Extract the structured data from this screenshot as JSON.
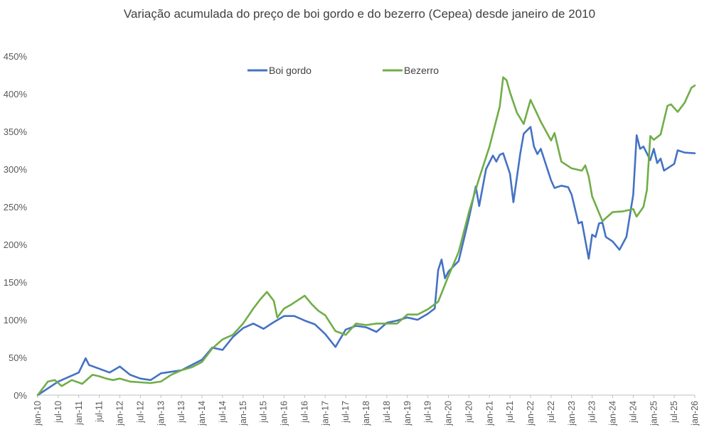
{
  "chart_data": {
    "type": "line",
    "title": "Variação acumulada do preço de boi gordo  e do bezerro (Cepea) desde janeiro de 2010",
    "xlabel": "",
    "ylabel": "",
    "ylim": [
      0,
      450
    ],
    "yticks": [
      "0%",
      "50%",
      "100%",
      "150%",
      "200%",
      "250%",
      "300%",
      "350%",
      "400%",
      "450%"
    ],
    "y_tick_values": [
      0,
      50,
      100,
      150,
      200,
      250,
      300,
      350,
      400,
      450
    ],
    "x_tick_labels": [
      "jan-10",
      "jul-10",
      "jan-11",
      "jul-11",
      "jan-12",
      "jul-12",
      "jan-13",
      "jul-13",
      "jan-14",
      "jul-14",
      "jan-15",
      "jul-15",
      "jan-16",
      "jul-16",
      "jan-17",
      "jul-17",
      "jan-18",
      "jul-18",
      "jan-19",
      "jul-19",
      "jan-20",
      "jul-20",
      "jan-21",
      "jul-21",
      "jan-22",
      "jul-22",
      "jan-23",
      "jul-23",
      "jan-24",
      "jul-24",
      "jan-25",
      "jul-25",
      "jan-26"
    ],
    "x_start": "jan-10",
    "x_end": "jan-26",
    "grid": false,
    "legend_position": "top",
    "series": [
      {
        "name": "Boi gordo",
        "color": "#4472C4",
        "points": [
          [
            "jan-10",
            0
          ],
          [
            "jul-10",
            18
          ],
          [
            "jan-11",
            30
          ],
          [
            "mar-11",
            49
          ],
          [
            "apr-11",
            40
          ],
          [
            "oct-11",
            30
          ],
          [
            "jan-12",
            38
          ],
          [
            "apr-12",
            27
          ],
          [
            "jul-12",
            22
          ],
          [
            "oct-12",
            20
          ],
          [
            "jan-13",
            29
          ],
          [
            "jul-13",
            33
          ],
          [
            "jan-14",
            47
          ],
          [
            "apr-14",
            63
          ],
          [
            "jul-14",
            60
          ],
          [
            "oct-14",
            77
          ],
          [
            "jan-15",
            89
          ],
          [
            "apr-15",
            95
          ],
          [
            "jul-15",
            88
          ],
          [
            "oct-15",
            97
          ],
          [
            "jan-16",
            105
          ],
          [
            "apr-16",
            105
          ],
          [
            "jul-16",
            99
          ],
          [
            "oct-16",
            94
          ],
          [
            "jan-17",
            81
          ],
          [
            "apr-17",
            64
          ],
          [
            "jul-17",
            87
          ],
          [
            "oct-17",
            92
          ],
          [
            "jan-18",
            90
          ],
          [
            "apr-18",
            84
          ],
          [
            "jul-18",
            96
          ],
          [
            "oct-18",
            99
          ],
          [
            "jan-19",
            103
          ],
          [
            "apr-19",
            100
          ],
          [
            "jul-19",
            108
          ],
          [
            "sep-19",
            115
          ],
          [
            "oct-19",
            166
          ],
          [
            "nov-19",
            180
          ],
          [
            "dec-19",
            155
          ],
          [
            "jan-20",
            164
          ],
          [
            "apr-20",
            178
          ],
          [
            "jul-20",
            235
          ],
          [
            "sep-20",
            277
          ],
          [
            "oct-20",
            251
          ],
          [
            "dec-20",
            300
          ],
          [
            "feb-21",
            318
          ],
          [
            "mar-21",
            310
          ],
          [
            "apr-21",
            319
          ],
          [
            "may-21",
            321
          ],
          [
            "jul-21",
            294
          ],
          [
            "aug-21",
            256
          ],
          [
            "oct-21",
            321
          ],
          [
            "nov-21",
            347
          ],
          [
            "jan-22",
            356
          ],
          [
            "feb-22",
            330
          ],
          [
            "mar-22",
            320
          ],
          [
            "apr-22",
            327
          ],
          [
            "jul-22",
            285
          ],
          [
            "aug-22",
            275
          ],
          [
            "oct-22",
            278
          ],
          [
            "dec-22",
            276
          ],
          [
            "jan-23",
            266
          ],
          [
            "mar-23",
            228
          ],
          [
            "apr-23",
            230
          ],
          [
            "jun-23",
            181
          ],
          [
            "jul-23",
            213
          ],
          [
            "aug-23",
            210
          ],
          [
            "sep-23",
            228
          ],
          [
            "oct-23",
            229
          ],
          [
            "nov-23",
            210
          ],
          [
            "jan-24",
            204
          ],
          [
            "mar-24",
            193
          ],
          [
            "may-24",
            210
          ],
          [
            "jul-24",
            266
          ],
          [
            "aug-24",
            345
          ],
          [
            "sep-24",
            327
          ],
          [
            "oct-24",
            330
          ],
          [
            "dec-24",
            312
          ],
          [
            "jan-25",
            327
          ],
          [
            "feb-25",
            308
          ],
          [
            "mar-25",
            314
          ],
          [
            "apr-25",
            298
          ],
          [
            "jul-25",
            307
          ],
          [
            "aug-25",
            325
          ],
          [
            "oct-25",
            322
          ],
          [
            "jan-26",
            321
          ]
        ]
      },
      {
        "name": "Bezerro",
        "color": "#70AD47",
        "points": [
          [
            "jan-10",
            0
          ],
          [
            "apr-10",
            18
          ],
          [
            "jun-10",
            20
          ],
          [
            "aug-10",
            12
          ],
          [
            "nov-10",
            20
          ],
          [
            "feb-11",
            15
          ],
          [
            "may-11",
            27
          ],
          [
            "jul-11",
            25
          ],
          [
            "sep-11",
            22
          ],
          [
            "nov-11",
            20
          ],
          [
            "jan-12",
            22
          ],
          [
            "apr-12",
            18
          ],
          [
            "jul-12",
            17
          ],
          [
            "oct-12",
            16
          ],
          [
            "jan-13",
            18
          ],
          [
            "apr-13",
            27
          ],
          [
            "jul-13",
            33
          ],
          [
            "oct-13",
            37
          ],
          [
            "jan-14",
            44
          ],
          [
            "apr-14",
            62
          ],
          [
            "jul-14",
            74
          ],
          [
            "oct-14",
            80
          ],
          [
            "jan-15",
            95
          ],
          [
            "apr-15",
            115
          ],
          [
            "jun-15",
            127
          ],
          [
            "aug-15",
            137
          ],
          [
            "oct-15",
            125
          ],
          [
            "nov-15",
            103
          ],
          [
            "jan-16",
            115
          ],
          [
            "mar-16",
            120
          ],
          [
            "jun-16",
            129
          ],
          [
            "jul-16",
            132
          ],
          [
            "sep-16",
            121
          ],
          [
            "nov-16",
            112
          ],
          [
            "jan-17",
            106
          ],
          [
            "apr-17",
            85
          ],
          [
            "jul-17",
            80
          ],
          [
            "oct-17",
            95
          ],
          [
            "jan-18",
            93
          ],
          [
            "apr-18",
            95
          ],
          [
            "jul-18",
            95
          ],
          [
            "oct-18",
            95
          ],
          [
            "jan-19",
            107
          ],
          [
            "apr-19",
            107
          ],
          [
            "jul-19",
            114
          ],
          [
            "oct-19",
            124
          ],
          [
            "jan-20",
            158
          ],
          [
            "apr-20",
            190
          ],
          [
            "jul-20",
            243
          ],
          [
            "oct-20",
            288
          ],
          [
            "jan-21",
            330
          ],
          [
            "apr-21",
            383
          ],
          [
            "may-21",
            422
          ],
          [
            "jun-21",
            418
          ],
          [
            "jul-21",
            402
          ],
          [
            "sep-21",
            375
          ],
          [
            "nov-21",
            360
          ],
          [
            "jan-22",
            392
          ],
          [
            "apr-22",
            363
          ],
          [
            "jul-22",
            338
          ],
          [
            "aug-22",
            348
          ],
          [
            "oct-22",
            310
          ],
          [
            "jan-23",
            301
          ],
          [
            "apr-23",
            298
          ],
          [
            "may-23",
            305
          ],
          [
            "jun-23",
            290
          ],
          [
            "jul-23",
            264
          ],
          [
            "oct-23",
            231
          ],
          [
            "jan-24",
            243
          ],
          [
            "apr-24",
            244
          ],
          [
            "jul-24",
            247
          ],
          [
            "aug-24",
            237
          ],
          [
            "oct-24",
            250
          ],
          [
            "nov-24",
            272
          ],
          [
            "dec-24",
            344
          ],
          [
            "jan-25",
            339
          ],
          [
            "mar-25",
            346
          ],
          [
            "may-25",
            384
          ],
          [
            "jun-25",
            386
          ],
          [
            "aug-25",
            376
          ],
          [
            "oct-25",
            388
          ],
          [
            "dec-25",
            408
          ],
          [
            "jan-26",
            411
          ]
        ]
      }
    ]
  }
}
